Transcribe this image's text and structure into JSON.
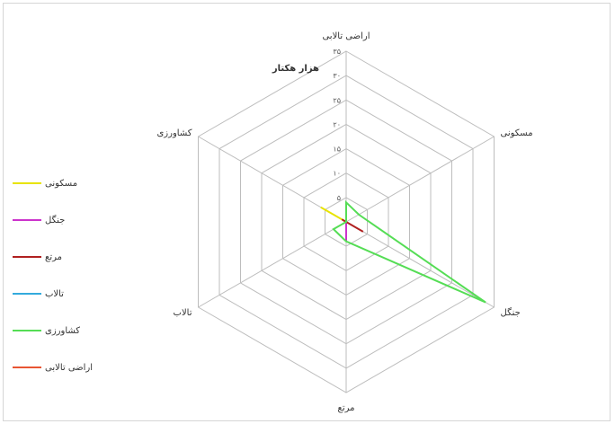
{
  "chart_data": {
    "type": "radar",
    "title": "",
    "unit_label": "هزار هکتار",
    "axes": [
      "اراضی تالابی",
      "مسکونی",
      "جنگل",
      "مرتع",
      "تالاب",
      "کشاورزی"
    ],
    "tick_labels": [
      "",
      "۵",
      "۱۰",
      "۱۵",
      "۲۰",
      "۲۵",
      "۳۰",
      "۳۵"
    ],
    "rlim": [
      0,
      35
    ],
    "series": [
      {
        "name": "مسکونی",
        "color": "#e8e300",
        "values": [
          0,
          0,
          0,
          0,
          0,
          6
        ]
      },
      {
        "name": "جنگل",
        "color": "#cc33cc",
        "values": [
          0,
          0,
          0,
          4,
          0,
          0
        ]
      },
      {
        "name": "مرتع",
        "color": "#b02020",
        "values": [
          0,
          0,
          4,
          0,
          0,
          1
        ]
      },
      {
        "name": "تالاب",
        "color": "#33aadd",
        "values": [
          0,
          0,
          0,
          0,
          0,
          0
        ]
      },
      {
        "name": "کشاورزی",
        "color": "#55dd55",
        "values": [
          4,
          3,
          33,
          4,
          3,
          0
        ]
      },
      {
        "name": "اراضی تالابی",
        "color": "#e85533",
        "values": [
          0,
          0,
          0,
          0,
          0,
          0
        ]
      }
    ],
    "legend_position": "left"
  }
}
